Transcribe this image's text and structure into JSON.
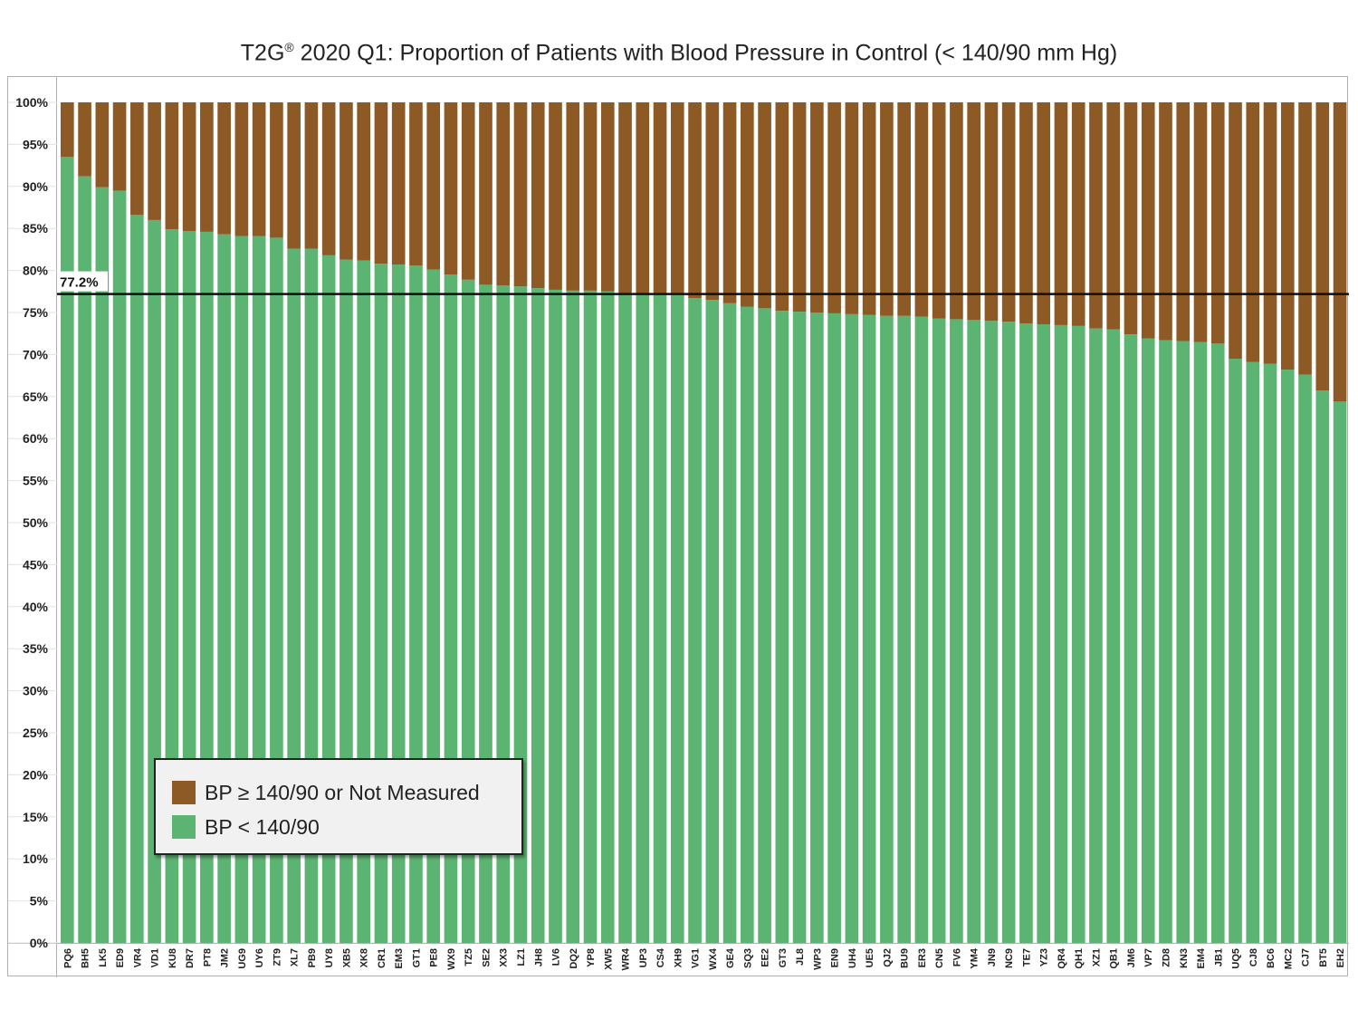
{
  "title_text": "T2G",
  "title_sup": "®",
  "title_rest": " 2020 Q1: Proportion of Patients with Blood Pressure in Control (< 140/90 mm Hg)",
  "colors": {
    "in_control": "#5bb472",
    "not_in_control": "#8d5a26",
    "reference_line": "#111111"
  },
  "chart_data": {
    "type": "bar",
    "stacked": true,
    "title": "T2G® 2020 Q1: Proportion of Patients with Blood Pressure in Control (< 140/90 mm Hg)",
    "ylim": [
      0,
      100
    ],
    "yticks": [
      "0%",
      "5%",
      "10%",
      "15%",
      "20%",
      "25%",
      "30%",
      "35%",
      "40%",
      "45%",
      "50%",
      "55%",
      "60%",
      "65%",
      "70%",
      "75%",
      "80%",
      "85%",
      "90%",
      "95%",
      "100%"
    ],
    "grid": true,
    "legend_position": "bottom-left",
    "categories": [
      "PQ6",
      "BH5",
      "LK5",
      "ED9",
      "VR4",
      "VD1",
      "KU8",
      "DR7",
      "PT8",
      "JM2",
      "UG9",
      "UY6",
      "ZT9",
      "XL7",
      "PB9",
      "UY8",
      "XB5",
      "XK8",
      "CR1",
      "EM3",
      "GT1",
      "PE8",
      "WX9",
      "TZ5",
      "SE2",
      "XX3",
      "LZ1",
      "JH8",
      "LV6",
      "DQ2",
      "YP8",
      "XW5",
      "WR4",
      "UP3",
      "CS4",
      "XH9",
      "VG1",
      "WX4",
      "GE4",
      "SQ3",
      "EE2",
      "GT3",
      "JL8",
      "WP3",
      "EN9",
      "UH4",
      "UE5",
      "QJ2",
      "BU9",
      "ER3",
      "CN5",
      "FV6",
      "YM4",
      "JN9",
      "NC9",
      "TE7",
      "YZ3",
      "QR4",
      "QH1",
      "XZ1",
      "QB1",
      "JM6",
      "VP7",
      "ZD8",
      "KN3",
      "EM4",
      "JB1",
      "UQ5",
      "CJ8",
      "BC6",
      "MC2",
      "CJ7",
      "BT5",
      "EH2"
    ],
    "series": [
      {
        "name": "BP < 140/90",
        "values": [
          93.5,
          91.2,
          89.9,
          89.5,
          86.6,
          86.0,
          84.9,
          84.7,
          84.6,
          84.3,
          84.1,
          84.1,
          83.9,
          82.6,
          82.6,
          81.8,
          81.3,
          81.2,
          80.8,
          80.7,
          80.6,
          80.1,
          79.5,
          78.9,
          78.3,
          78.2,
          78.1,
          77.9,
          77.7,
          77.6,
          77.6,
          77.5,
          77.2,
          77.2,
          77.2,
          77.2,
          76.7,
          76.5,
          76.1,
          75.7,
          75.5,
          75.2,
          75.1,
          75.0,
          74.9,
          74.8,
          74.7,
          74.6,
          74.6,
          74.5,
          74.3,
          74.2,
          74.1,
          74.0,
          73.9,
          73.7,
          73.6,
          73.5,
          73.4,
          73.1,
          73.0,
          72.4,
          71.9,
          71.7,
          71.6,
          71.5,
          71.3,
          69.5,
          69.1,
          68.9,
          68.2,
          67.6,
          65.7,
          64.4
        ]
      },
      {
        "name": "BP ≥ 140/90 or Not Measured",
        "values": [
          6.5,
          8.8,
          10.1,
          10.5,
          13.4,
          14.0,
          15.1,
          15.3,
          15.4,
          15.7,
          15.9,
          15.9,
          16.1,
          17.4,
          17.4,
          18.2,
          18.7,
          18.8,
          19.2,
          19.3,
          19.4,
          19.9,
          20.5,
          21.1,
          21.7,
          21.8,
          21.9,
          22.1,
          22.3,
          22.4,
          22.4,
          22.5,
          22.8,
          22.8,
          22.8,
          22.8,
          23.3,
          23.5,
          23.9,
          24.3,
          24.5,
          24.8,
          24.9,
          25.0,
          25.1,
          25.2,
          25.3,
          25.4,
          25.4,
          25.5,
          25.7,
          25.8,
          25.9,
          26.0,
          26.1,
          26.3,
          26.4,
          26.5,
          26.6,
          26.9,
          27.0,
          27.6,
          28.1,
          28.3,
          28.4,
          28.5,
          28.7,
          30.5,
          30.9,
          31.1,
          31.8,
          32.4,
          34.3,
          35.6
        ]
      }
    ],
    "reference_line": {
      "value": 77.2,
      "label": "77.2%"
    }
  },
  "legend": [
    {
      "label": "BP ≥ 140/90 or Not Measured",
      "color": "#8d5a26"
    },
    {
      "label": "BP < 140/90",
      "color": "#5bb472"
    }
  ]
}
